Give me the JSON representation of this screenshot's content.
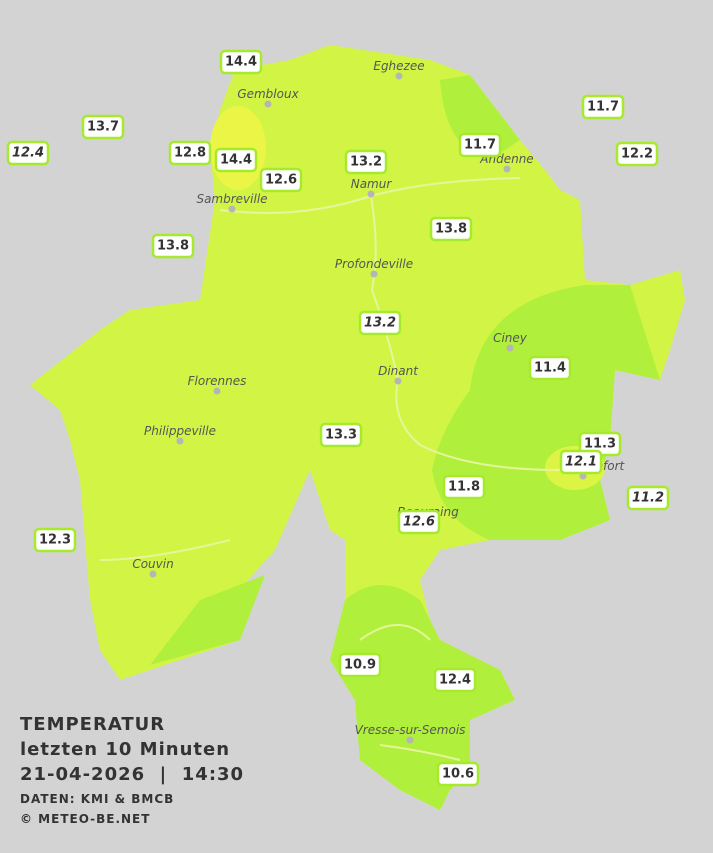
{
  "title": {
    "heading": "TEMPERATUR",
    "period": "letzten 10 Minuten",
    "datetime": "21-04-2026  |  14:30",
    "source": "DATEN: KMI & BMCB",
    "copyright": "© METEO-BE.NET"
  },
  "towns": [
    "Eghezee",
    "Gembloux",
    "Andenne",
    "Namur",
    "Sambreville",
    "Profondeville",
    "Ciney",
    "Dinant",
    "Florennes",
    "Philippeville",
    "Rochefort",
    "Beauraing",
    "Couvin",
    "Vresse-sur-Semois"
  ],
  "stations": [
    14.4,
    13.7,
    12.4,
    12.8,
    14.4,
    12.6,
    13.2,
    11.7,
    11.7,
    12.2,
    13.8,
    13.8,
    13.2,
    11.4,
    13.3,
    11.3,
    12.1,
    11.8,
    11.2,
    12.6,
    12.3,
    10.9,
    12.4,
    10.6
  ]
}
